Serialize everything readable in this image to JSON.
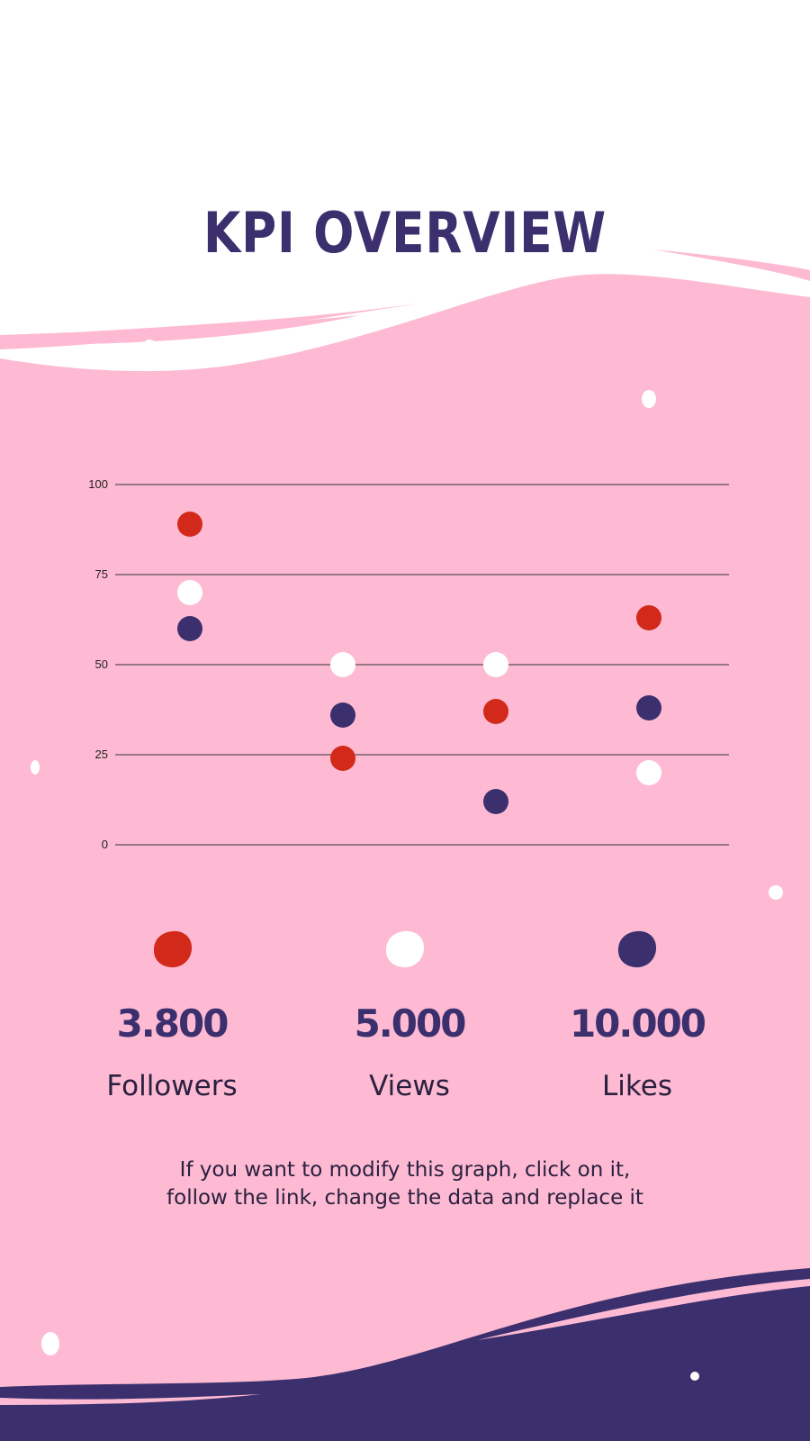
{
  "colors": {
    "background": "#fdbad2",
    "accent_dark": "#3b2f6e",
    "red": "#d2291a",
    "white": "#ffffff"
  },
  "title": "KPI OVERVIEW",
  "chart_data": {
    "type": "scatter",
    "yticks": [
      0,
      25,
      50,
      75,
      100
    ],
    "ylim": [
      0,
      100
    ],
    "categories": [
      "",
      "",
      "",
      ""
    ],
    "series": [
      {
        "color": "#d2291a",
        "values": [
          89,
          24,
          37,
          63
        ]
      },
      {
        "color": "#ffffff",
        "values": [
          70,
          50,
          50,
          20
        ]
      },
      {
        "color": "#3b2f6e",
        "values": [
          60,
          36,
          12,
          38
        ]
      }
    ],
    "grid": true,
    "legend": "none"
  },
  "kpis": [
    {
      "value": "3.800",
      "label": "Followers",
      "color": "#d2291a"
    },
    {
      "value": "5.000",
      "label": "Views",
      "color": "#ffffff"
    },
    {
      "value": "10.000",
      "label": "Likes",
      "color": "#3b2f6e"
    }
  ],
  "note": {
    "line1": "If you want to modify this graph, click on it,",
    "line2": "follow the link, change the data and replace it"
  }
}
